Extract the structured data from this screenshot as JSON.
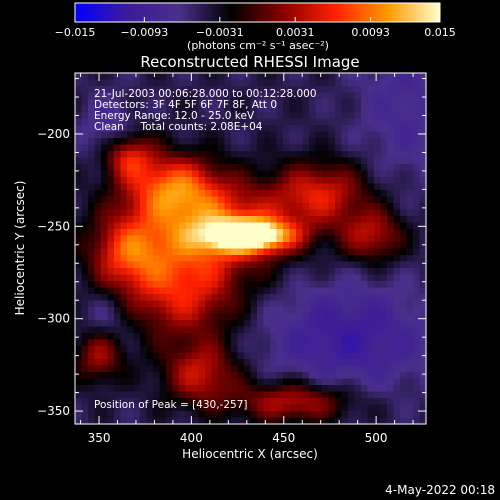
{
  "chart_data": {
    "type": "heatmap",
    "title": "Reconstructed RHESSI Image",
    "xlabel": "Heliocentric X (arcsec)",
    "ylabel": "Heliocentric Y (arcsec)",
    "xlim": [
      337,
      527
    ],
    "ylim": [
      -357,
      -167
    ],
    "x_ticks": [
      350,
      400,
      450,
      500
    ],
    "x_tick_labels": [
      "350",
      "400",
      "450",
      "500"
    ],
    "y_ticks": [
      -200,
      -250,
      -300,
      -350
    ],
    "y_tick_labels": [
      "−200",
      "−250",
      "−300",
      "−350"
    ],
    "colorbar": {
      "range": [
        -0.015,
        0.015
      ],
      "tick_values": [
        -0.015,
        -0.0093,
        -0.0031,
        0.0031,
        0.0093,
        0.015
      ],
      "tick_labels": [
        "−0.015",
        "−0.0093",
        "−0.0031",
        "0.0031",
        "0.0093",
        "0.015"
      ],
      "units_label": "(photons cm⁻² s⁻¹ asec⁻²)",
      "colormap": [
        "#0000ff",
        "#3c1a9a",
        "#4a2f8a",
        "#000000",
        "#8c0000",
        "#ff2200",
        "#ff9900",
        "#ffffcc"
      ]
    },
    "annotations": [
      "21-Jul-2003 00:06:28.000 to 00:12:28.000",
      "Detectors: 3F 4F 5F 6F 7F 8F, Att 0",
      "Energy Range: 12.0 - 25.0 keV",
      "Clean     Total counts: 2.08E+04",
      "Position of Peak = [430,-257]"
    ],
    "peak": {
      "x": 430,
      "y": -257
    },
    "regions": [
      {
        "x": 432,
        "y": -255,
        "sx": 16,
        "sy": 6,
        "value": 0.015
      },
      {
        "x": 410,
        "y": -250,
        "sx": 30,
        "sy": 16,
        "value": 0.0075
      },
      {
        "x": 390,
        "y": -228,
        "sx": 18,
        "sy": 12,
        "value": 0.0065
      },
      {
        "x": 365,
        "y": -212,
        "sx": 10,
        "sy": 9,
        "value": 0.005
      },
      {
        "x": 395,
        "y": -285,
        "sx": 22,
        "sy": 18,
        "value": 0.0055
      },
      {
        "x": 365,
        "y": -265,
        "sx": 14,
        "sy": 14,
        "value": 0.0045
      },
      {
        "x": 470,
        "y": -232,
        "sx": 18,
        "sy": 12,
        "value": 0.0045
      },
      {
        "x": 498,
        "y": -255,
        "sx": 12,
        "sy": 10,
        "value": 0.0035
      },
      {
        "x": 455,
        "y": -345,
        "sx": 22,
        "sy": 8,
        "value": 0.004
      },
      {
        "x": 405,
        "y": -330,
        "sx": 14,
        "sy": 12,
        "value": 0.004
      },
      {
        "x": 350,
        "y": -320,
        "sx": 9,
        "sy": 10,
        "value": 0.003
      },
      {
        "x": 355,
        "y": -200,
        "sx": 10,
        "sy": 14,
        "value": -0.005
      },
      {
        "x": 515,
        "y": -185,
        "sx": 18,
        "sy": 30,
        "value": -0.0045
      },
      {
        "x": 485,
        "y": -310,
        "sx": 32,
        "sy": 20,
        "value": -0.007
      },
      {
        "x": 355,
        "y": -300,
        "sx": 10,
        "sy": 12,
        "value": -0.004
      }
    ]
  },
  "footer": {
    "timestamp": "4-May-2022 00:18"
  }
}
